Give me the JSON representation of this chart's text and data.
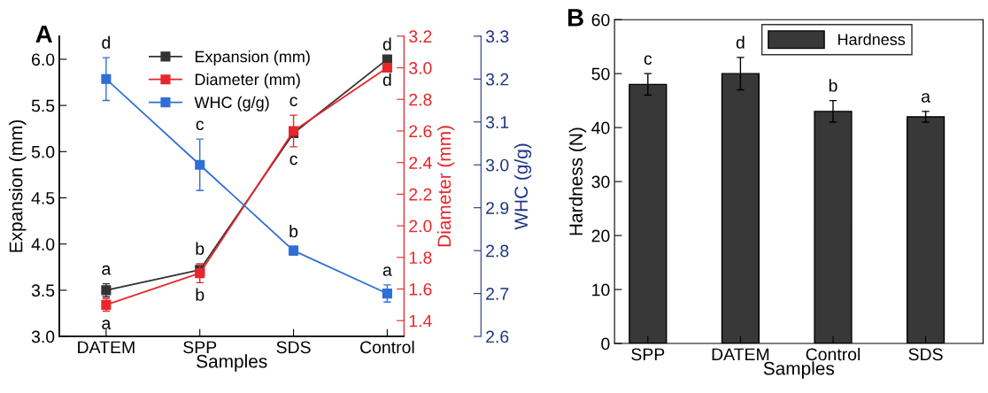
{
  "chart_data": [
    {
      "type": "line",
      "title": "A",
      "xlabel": "Samples",
      "ylabel": "Expansion (mm)",
      "y2label": "Diameter (mm)",
      "y3label": "WHC (g/g)",
      "categories": [
        "DATEM",
        "SPP",
        "SDS",
        "Control"
      ],
      "series": [
        {
          "name": "Expansion (mm)",
          "color": "#333333",
          "values": [
            3.5,
            3.72,
            5.2,
            6.0
          ],
          "errors": [
            0.07,
            0.03,
            0.03,
            null
          ],
          "value_labels": [
            "a",
            "b",
            "c",
            "d"
          ],
          "axis": "y"
        },
        {
          "name": "Diameter (mm)",
          "color": "#e8262b",
          "values": [
            1.5,
            1.7,
            2.6,
            3.0
          ],
          "errors": [
            0.04,
            0.06,
            0.1,
            null
          ],
          "value_labels": [
            "a",
            "b",
            "c",
            "d"
          ],
          "axis": "y2"
        },
        {
          "name": "WHC (g/g)",
          "color": "#2f6fd6",
          "values": [
            3.2,
            3.0,
            2.8,
            2.7
          ],
          "errors": [
            0.05,
            0.06,
            0.01,
            0.02
          ],
          "value_labels": [
            "d",
            "c",
            "b",
            "a"
          ],
          "axis": "y3"
        }
      ],
      "ylim": [
        3.0,
        6.25
      ],
      "yticks": [
        {
          "value": 3,
          "label": "3.0"
        },
        {
          "value": 3.5,
          "label": "3.5"
        },
        {
          "value": 4,
          "label": "4.0"
        },
        {
          "value": 4.5,
          "label": "4.5"
        },
        {
          "value": 5,
          "label": "5.0"
        },
        {
          "value": 5.5,
          "label": "5.5"
        },
        {
          "value": 6,
          "label": "6.0"
        }
      ],
      "y2lim": [
        1.3,
        3.2
      ],
      "y2ticks": [
        {
          "value": 1.4,
          "label": "1.4"
        },
        {
          "value": 1.6,
          "label": "1.6"
        },
        {
          "value": 1.8,
          "label": "1.8"
        },
        {
          "value": 2,
          "label": "2.0"
        },
        {
          "value": 2.2,
          "label": "2.2"
        },
        {
          "value": 2.4,
          "label": "2.4"
        },
        {
          "value": 2.6,
          "label": "2.6"
        },
        {
          "value": 2.8,
          "label": "2.8"
        },
        {
          "value": 3,
          "label": "3.0"
        },
        {
          "value": 3.2,
          "label": "3.2"
        }
      ],
      "y3lim": [
        2.6,
        3.3
      ],
      "y3ticks": [
        {
          "value": 2.6,
          "label": "2.6"
        },
        {
          "value": 2.7,
          "label": "2.7"
        },
        {
          "value": 2.8,
          "label": "2.8"
        },
        {
          "value": 2.9,
          "label": "2.9"
        },
        {
          "value": 3,
          "label": "3.0"
        },
        {
          "value": 3.1,
          "label": "3.1"
        },
        {
          "value": 3.2,
          "label": "3.2"
        },
        {
          "value": 3.3,
          "label": "3.3"
        }
      ],
      "marker": "square",
      "legend": "top left",
      "grid": false
    },
    {
      "type": "bar",
      "title": "B",
      "xlabel": "Samples",
      "ylabel": "Hardness (N)",
      "categories": [
        "SPP",
        "DATEM",
        "Control",
        "SDS"
      ],
      "series": [
        {
          "name": "Hardness",
          "color": "#383838",
          "values": [
            48,
            50,
            43,
            42
          ],
          "errors": [
            2,
            3,
            2,
            1
          ],
          "value_labels": [
            "c",
            "d",
            "b",
            "a"
          ]
        }
      ],
      "ylim": [
        0,
        60
      ],
      "yticks": [
        0,
        10,
        20,
        30,
        40,
        50,
        60
      ],
      "legend": "top",
      "grid": false
    }
  ]
}
